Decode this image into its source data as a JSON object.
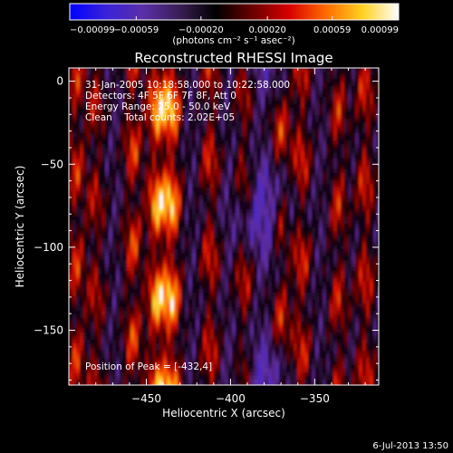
{
  "chart_data": {
    "type": "heatmap",
    "title": "Reconstructed RHESSI Image",
    "xlabel": "Heliocentric X (arcsec)",
    "ylabel": "Heliocentric Y (arcsec)",
    "xlim": [
      -496,
      -312
    ],
    "ylim": [
      -183,
      8
    ],
    "xticks": [
      {
        "value": -450,
        "label": "−450"
      },
      {
        "value": -400,
        "label": "−400"
      },
      {
        "value": -350,
        "label": "−350"
      }
    ],
    "yticks": [
      {
        "value": 0,
        "label": "0"
      },
      {
        "value": -50,
        "label": "−50"
      },
      {
        "value": -100,
        "label": "−100"
      },
      {
        "value": -150,
        "label": "−150"
      }
    ],
    "colorbar": {
      "min": -0.00099,
      "max": 0.00099,
      "ticks": [
        {
          "value": -0.00099,
          "label": "−0.00099"
        },
        {
          "value": -0.00059,
          "label": "−0.00059"
        },
        {
          "value": -0.0002,
          "label": "−0.00020"
        },
        {
          "value": 0.0002,
          "label": "0.00020"
        },
        {
          "value": 0.00059,
          "label": "0.00059"
        },
        {
          "value": 0.00099,
          "label": "0.00099"
        }
      ],
      "unit_label": "(photons cm⁻² s⁻¹ asec⁻²)",
      "colors": [
        "#0000ff",
        "#3a22d8",
        "#5a2fa8",
        "#3a1e55",
        "#000000",
        "#6a0000",
        "#d80000",
        "#ff6a00",
        "#ffd020",
        "#ffffff"
      ]
    },
    "annotations": [
      "31-Jan-2005 10:18:58.000 to 10:22:58.000",
      "Detectors: 4F 5F 6F 7F 8F, Att 0",
      "Energy Range: 25.0 - 50.0 keV",
      "Clean    Total counts: 2.02E+05",
      "Position of Peak = [-432,4]"
    ],
    "peak": {
      "x": -432,
      "y": 4
    }
  },
  "footer": {
    "timestamp": "6-Jul-2013 13:50"
  }
}
